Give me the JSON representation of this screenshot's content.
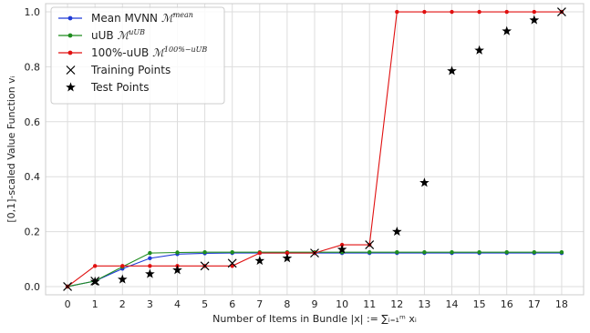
{
  "chart_data": {
    "type": "line",
    "title": "",
    "xlabel": "Number of Items in Bundle |x| := ∑ᵢ₌₁ᵐ xᵢ",
    "ylabel": "[0,1]-scaled Value Function vᵢ",
    "xlim": [
      -0.8,
      18.8
    ],
    "ylim": [
      -0.03,
      1.03
    ],
    "x_ticks": [
      0,
      1,
      2,
      3,
      4,
      5,
      6,
      7,
      8,
      9,
      10,
      11,
      12,
      13,
      14,
      15,
      16,
      17,
      18
    ],
    "y_ticks": [
      0.0,
      0.2,
      0.4,
      0.6,
      0.8,
      1.0
    ],
    "y_tick_labels": [
      "0.0",
      "0.2",
      "0.4",
      "0.6",
      "0.8",
      "1.0"
    ],
    "grid": true,
    "legend_position": "top-left",
    "x": [
      0,
      1,
      2,
      3,
      4,
      5,
      6,
      7,
      8,
      9,
      10,
      11,
      12,
      13,
      14,
      15,
      16,
      17,
      18
    ],
    "series": [
      {
        "name": "Mean MVNN",
        "name_math": "ℳ",
        "name_sup": "mean",
        "name_sub": "i",
        "marker": "dot",
        "color": "#1f3bd6",
        "values": [
          0.0,
          0.02,
          0.065,
          0.103,
          0.118,
          0.121,
          0.122,
          0.122,
          0.122,
          0.122,
          0.122,
          0.122,
          0.122,
          0.122,
          0.122,
          0.122,
          0.122,
          0.122,
          0.122
        ]
      },
      {
        "name": "uUB",
        "name_math": "ℳ",
        "name_sup": "uUB",
        "name_sub": "i",
        "marker": "dot",
        "color": "#1e8c1e",
        "values": [
          0.0,
          0.02,
          0.072,
          0.122,
          0.124,
          0.125,
          0.125,
          0.125,
          0.125,
          0.125,
          0.125,
          0.125,
          0.125,
          0.125,
          0.125,
          0.125,
          0.125,
          0.125,
          0.125
        ]
      },
      {
        "name": "100%-uUB",
        "name_math": "ℳ",
        "name_sup": "100%−uUB",
        "name_sub": "i",
        "marker": "dot",
        "color": "#e01010",
        "values": [
          0.0,
          0.075,
          0.075,
          0.075,
          0.075,
          0.075,
          0.075,
          0.122,
          0.122,
          0.122,
          0.152,
          0.152,
          1.0,
          1.0,
          1.0,
          1.0,
          1.0,
          1.0,
          1.0
        ]
      }
    ],
    "training_points": {
      "name": "Training Points",
      "marker": "x",
      "color": "#000000",
      "points": [
        [
          0,
          0.0
        ],
        [
          1,
          0.02
        ],
        [
          5,
          0.075
        ],
        [
          6,
          0.085
        ],
        [
          9,
          0.122
        ],
        [
          11,
          0.152
        ],
        [
          18,
          1.0
        ]
      ]
    },
    "test_points": {
      "name": "Test Points",
      "marker": "star",
      "color": "#000000",
      "points": [
        [
          1,
          0.018
        ],
        [
          2,
          0.026
        ],
        [
          3,
          0.046
        ],
        [
          4,
          0.06
        ],
        [
          7,
          0.094
        ],
        [
          8,
          0.103
        ],
        [
          10,
          0.135
        ],
        [
          12,
          0.2
        ],
        [
          13,
          0.378
        ],
        [
          14,
          0.785
        ],
        [
          15,
          0.86
        ],
        [
          16,
          0.93
        ],
        [
          17,
          0.97
        ]
      ]
    }
  }
}
